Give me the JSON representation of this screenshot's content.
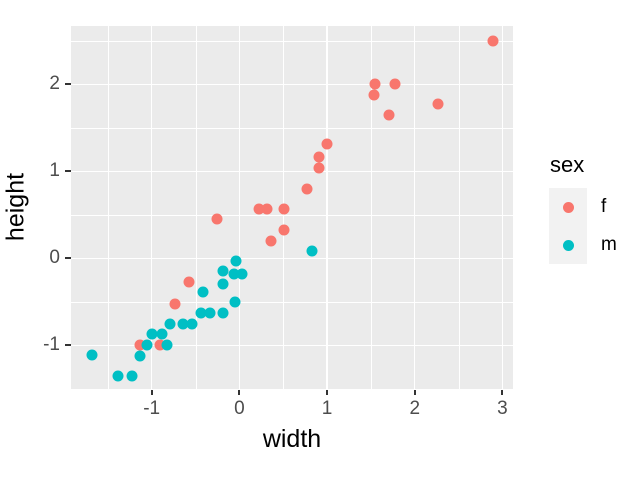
{
  "figure": {
    "background": "#FFFFFF",
    "panel_background": "#EBEBEB",
    "grid_color": "#FFFFFF",
    "tick_mark_color": "#333333",
    "tick_label_color": "#4D4D4D",
    "axis_title_color": "#000000"
  },
  "chart_data": {
    "type": "scatter",
    "title": "",
    "xlabel": "width",
    "ylabel": "height",
    "xlim": [
      -1.92,
      3.12
    ],
    "ylim": [
      -1.5,
      2.67
    ],
    "x_ticks": [
      -1,
      0,
      1,
      2,
      3
    ],
    "x_tick_labels": [
      "-1",
      "0",
      "1",
      "2",
      "3"
    ],
    "y_ticks": [
      -1,
      0,
      1,
      2
    ],
    "y_tick_labels": [
      "-1",
      "0",
      "1",
      "2"
    ],
    "x_minor": [
      -1.5,
      -0.5,
      0.5,
      1.5,
      2.5
    ],
    "y_minor": [
      -0.5,
      0.5,
      1.5,
      2.5
    ],
    "grid": true,
    "legend_position": "right",
    "legend_title": "sex",
    "series": [
      {
        "name": "f",
        "color": "#F8766D",
        "points": [
          [
            2.89,
            2.5
          ],
          [
            1.55,
            2.0
          ],
          [
            1.78,
            2.0
          ],
          [
            1.54,
            1.88
          ],
          [
            2.26,
            1.77
          ],
          [
            1.71,
            1.65
          ],
          [
            1.0,
            1.31
          ],
          [
            0.91,
            1.17
          ],
          [
            0.91,
            1.04
          ],
          [
            0.77,
            0.8
          ],
          [
            0.22,
            0.57
          ],
          [
            0.31,
            0.57
          ],
          [
            0.51,
            0.57
          ],
          [
            0.51,
            0.33
          ],
          [
            0.36,
            0.2
          ],
          [
            -0.26,
            0.45
          ],
          [
            -0.58,
            -0.27
          ],
          [
            -0.73,
            -0.52
          ],
          [
            -1.13,
            -1.0
          ],
          [
            -0.91,
            -1.0
          ]
        ]
      },
      {
        "name": "m",
        "color": "#00BFC4",
        "points": [
          [
            0.83,
            0.09
          ],
          [
            -0.04,
            -0.03
          ],
          [
            -0.19,
            -0.15
          ],
          [
            -0.06,
            -0.18
          ],
          [
            0.03,
            -0.18
          ],
          [
            -0.19,
            -0.29
          ],
          [
            -0.42,
            -0.39
          ],
          [
            -0.05,
            -0.5
          ],
          [
            -0.44,
            -0.63
          ],
          [
            -0.34,
            -0.63
          ],
          [
            -0.19,
            -0.63
          ],
          [
            -0.79,
            -0.75
          ],
          [
            -0.64,
            -0.75
          ],
          [
            -0.54,
            -0.75
          ],
          [
            -1.0,
            -0.87
          ],
          [
            -0.88,
            -0.87
          ],
          [
            -1.05,
            -1.0
          ],
          [
            -0.82,
            -1.0
          ],
          [
            -1.13,
            -1.12
          ],
          [
            -1.68,
            -1.11
          ],
          [
            -1.38,
            -1.35
          ],
          [
            -1.22,
            -1.35
          ]
        ]
      }
    ]
  },
  "legend": {
    "title": "sex",
    "key_fill": "#F2F2F2",
    "items": [
      {
        "label": "f",
        "color": "#F8766D"
      },
      {
        "label": "m",
        "color": "#00BFC4"
      }
    ]
  }
}
